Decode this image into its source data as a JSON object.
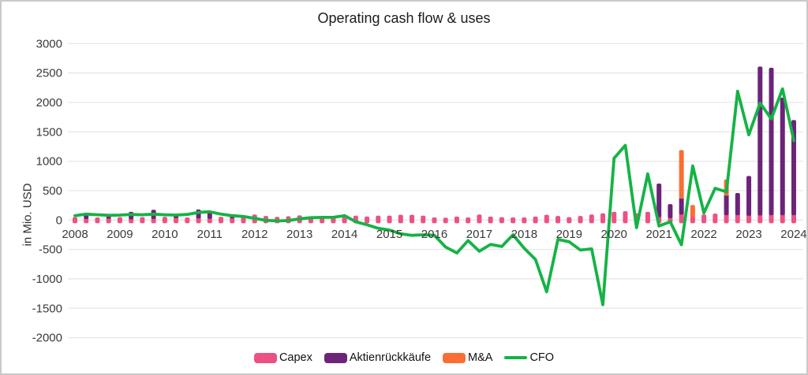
{
  "title": "Operating cash flow & uses",
  "y_axis_label": "in Mio. USD",
  "colors": {
    "capex": "#ed5183",
    "buyback": "#6c2379",
    "mna": "#fb6e33",
    "cfo": "#14b345",
    "grid": "#e7e7e7",
    "tick_text": "#3a3a3a",
    "title_text": "#1c1c1c",
    "frame_border": "#c9c9c9"
  },
  "chart_data": {
    "type": "bar",
    "subtype": "stacked-quarterly-bars-with-line",
    "title": "Operating cash flow & uses",
    "ylabel": "in Mio. USD",
    "xlabel": "",
    "ylim": [
      -2000,
      3000
    ],
    "grid": true,
    "legend_position": "bottom",
    "y_ticks": [
      3000,
      2500,
      2000,
      1500,
      1000,
      500,
      0,
      -500,
      -1000,
      -1500,
      -2000
    ],
    "x_tick_labels": [
      "2008",
      "2009",
      "2010",
      "2011",
      "2012",
      "2013",
      "2014",
      "2015",
      "2016",
      "2017",
      "2018",
      "2019",
      "2020",
      "2021",
      "2022",
      "2023",
      "2024"
    ],
    "quarters_per_year": 4,
    "x_note": "65 quarterly points, 2008Q1 through 2024Q1; year label sits at Q1 of each year",
    "series": [
      {
        "name": "Capex",
        "type": "bar",
        "stack": "uses",
        "color_key": "capex",
        "values": [
          50,
          45,
          45,
          50,
          50,
          40,
          50,
          45,
          55,
          60,
          45,
          55,
          50,
          55,
          55,
          60,
          95,
          70,
          55,
          65,
          80,
          55,
          45,
          50,
          60,
          75,
          60,
          75,
          75,
          90,
          90,
          75,
          45,
          40,
          60,
          45,
          95,
          60,
          50,
          45,
          45,
          60,
          90,
          70,
          50,
          70,
          95,
          115,
          140,
          150,
          115,
          140,
          75,
          60,
          120,
          75,
          95,
          110,
          110,
          110,
          100,
          105,
          110,
          110,
          110
        ]
      },
      {
        "name": "Aktienrückkäufe",
        "type": "bar",
        "stack": "uses",
        "color_key": "buyback",
        "values": [
          0,
          65,
          0,
          15,
          0,
          100,
          0,
          130,
          0,
          20,
          0,
          125,
          90,
          0,
          25,
          0,
          0,
          0,
          0,
          0,
          0,
          0,
          0,
          0,
          0,
          0,
          0,
          0,
          0,
          0,
          0,
          0,
          0,
          0,
          0,
          0,
          0,
          0,
          0,
          0,
          0,
          0,
          0,
          0,
          0,
          0,
          0,
          0,
          0,
          0,
          0,
          0,
          545,
          210,
          270,
          0,
          0,
          0,
          330,
          350,
          650,
          2505,
          2480,
          1970,
          1590
        ]
      },
      {
        "name": "M&A",
        "type": "bar",
        "stack": "uses",
        "color_key": "mna",
        "values": [
          0,
          0,
          0,
          0,
          0,
          0,
          0,
          0,
          0,
          0,
          0,
          0,
          0,
          0,
          0,
          0,
          0,
          0,
          0,
          0,
          0,
          0,
          0,
          0,
          0,
          0,
          0,
          0,
          0,
          0,
          0,
          0,
          0,
          0,
          0,
          0,
          0,
          0,
          0,
          0,
          0,
          0,
          0,
          0,
          0,
          0,
          0,
          0,
          0,
          0,
          0,
          0,
          0,
          0,
          800,
          180,
          0,
          0,
          250,
          0,
          0,
          0,
          0,
          0,
          0
        ]
      },
      {
        "name": "CFO",
        "type": "line",
        "color_key": "cfo",
        "values": [
          75,
          100,
          90,
          80,
          85,
          95,
          90,
          100,
          90,
          85,
          95,
          130,
          140,
          100,
          75,
          60,
          30,
          -5,
          -15,
          -10,
          20,
          40,
          45,
          45,
          75,
          -30,
          -80,
          -140,
          -170,
          -235,
          -260,
          -250,
          -260,
          -460,
          -560,
          -350,
          -530,
          -415,
          -450,
          -250,
          -480,
          -670,
          -1220,
          -330,
          -370,
          -510,
          -490,
          -1440,
          1050,
          1270,
          -130,
          785,
          -100,
          -30,
          -420,
          920,
          120,
          540,
          480,
          2190,
          1450,
          1990,
          1720,
          2230,
          1350
        ]
      }
    ]
  }
}
